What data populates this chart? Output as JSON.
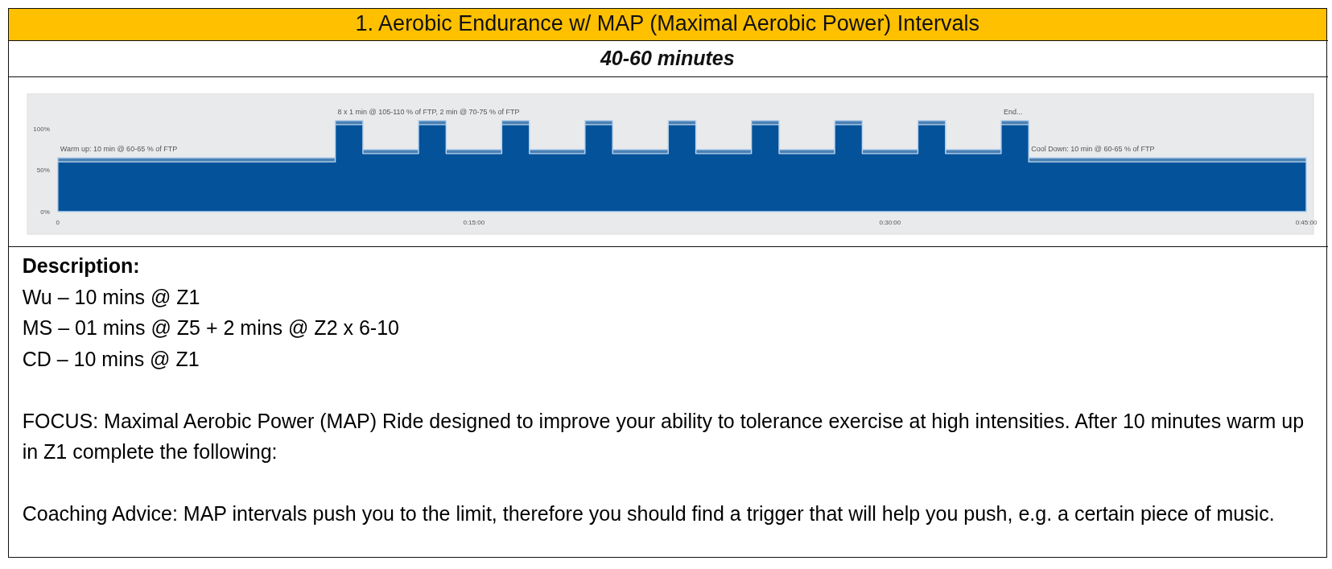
{
  "chart_data": {
    "type": "area",
    "title": "1. Aerobic Endurance w/ MAP (Maximal Aerobic Power) Intervals",
    "subtitle": "40-60 minutes",
    "x": [
      0,
      0.1667,
      0.1667,
      0.1833,
      0.1833,
      0.2167,
      0.2167,
      0.2333,
      0.2333,
      0.2667,
      0.2667,
      0.2833,
      0.2833,
      0.3167,
      0.3167,
      0.3333,
      0.3333,
      0.3667,
      0.3667,
      0.3833,
      0.3833,
      0.4167,
      0.4167,
      0.4333,
      0.4333,
      0.4667,
      0.4667,
      0.4833,
      0.4833,
      0.5167,
      0.5167,
      0.5333,
      0.5333,
      0.5667,
      0.5667,
      0.5833,
      0.5833,
      0.75
    ],
    "series": [
      {
        "color": "#4a80b4",
        "values": [
          65,
          65,
          110,
          110,
          75,
          75,
          110,
          110,
          75,
          75,
          110,
          110,
          75,
          75,
          110,
          110,
          75,
          75,
          110,
          110,
          75,
          75,
          110,
          110,
          75,
          75,
          110,
          110,
          75,
          75,
          110,
          110,
          75,
          75,
          110,
          110,
          65,
          65
        ]
      },
      {
        "color": "#04529a",
        "values": [
          60,
          60,
          105,
          105,
          70,
          70,
          105,
          105,
          70,
          70,
          105,
          105,
          70,
          70,
          105,
          105,
          70,
          70,
          105,
          105,
          70,
          70,
          105,
          105,
          70,
          70,
          105,
          105,
          70,
          70,
          105,
          105,
          70,
          70,
          105,
          105,
          60,
          60
        ]
      }
    ],
    "xlim": [
      0,
      0.75
    ],
    "ylim": [
      0,
      142
    ],
    "xticks": [
      0,
      {
        "value": 0.25,
        "label": "0:15:00"
      },
      {
        "value": 0.5,
        "label": "0:30:00"
      },
      {
        "value": 0.75,
        "label": "0:45:00"
      }
    ],
    "yticks": [
      {
        "value": 0,
        "label": "0%"
      },
      {
        "value": 50,
        "label": "50%"
      },
      {
        "value": 100,
        "label": "100%"
      }
    ],
    "annotations": [
      {
        "text": "Warm up: 10 min @ 60-65 % of FTP",
        "x": 0,
        "y": 65
      },
      {
        "text": "8 x 1 min @ 105-110 % of FTP, 2 min @ 70-75 % of FTP",
        "x": 0.1667,
        "y": 110
      },
      {
        "text": "End...",
        "x": 0.5667,
        "y": 110
      },
      {
        "text": "Cool Down: 10 min @ 60-65 % of FTP",
        "x": 0.5833,
        "y": 65
      },
      "Description:",
      "Wu – 10 mins @ Z1",
      "MS – 01 mins @ Z5 + 2 mins @ Z2 x 6-10",
      "CD – 10 mins @ Z1",
      "FOCUS: Maximal Aerobic Power (MAP) Ride designed to improve your ability to tolerance exercise at high intensities. After 10 minutes warm up in Z1 complete the following:",
      "Coaching Advice: MAP intervals push you to the limit, therefore you should find a trigger that will help you push, e.g. a certain piece of music."
    ]
  }
}
